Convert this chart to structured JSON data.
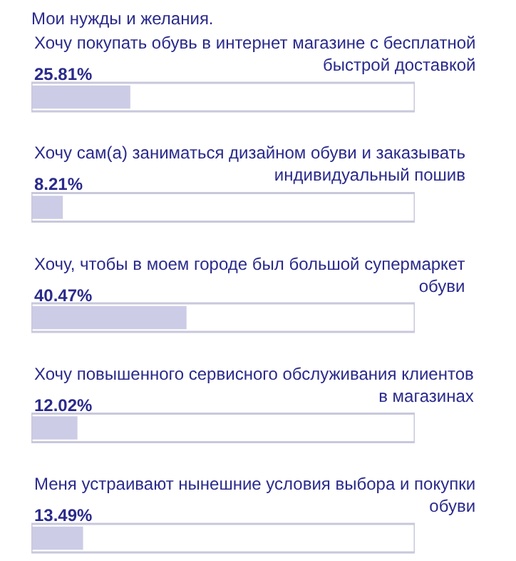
{
  "chart_data": {
    "type": "bar",
    "orientation": "horizontal",
    "title": "Мои нужды и желания.",
    "categories": [
      "Хочу покупать обувь в интернет магазине с бесплатной\nбыстрой доставкой",
      "Хочу сам(а) заниматься дизайном обуви и заказывать\nиндивидуальный пошив",
      "Хочу, чтобы в моем городе был большой супермаркет\nобуви",
      "Хочу повышенного сервисного обслуживания клиентов\nв магазинах",
      "Меня устраивают нынешние условия выбора и покупки\nобуви"
    ],
    "values": [
      25.81,
      8.21,
      40.47,
      12.02,
      13.49
    ],
    "value_labels": [
      "25.81%",
      "8.21%",
      "40.47%",
      "12.02%",
      "13.49%"
    ],
    "color": "#cccce6",
    "xlim": [
      0,
      100
    ]
  }
}
